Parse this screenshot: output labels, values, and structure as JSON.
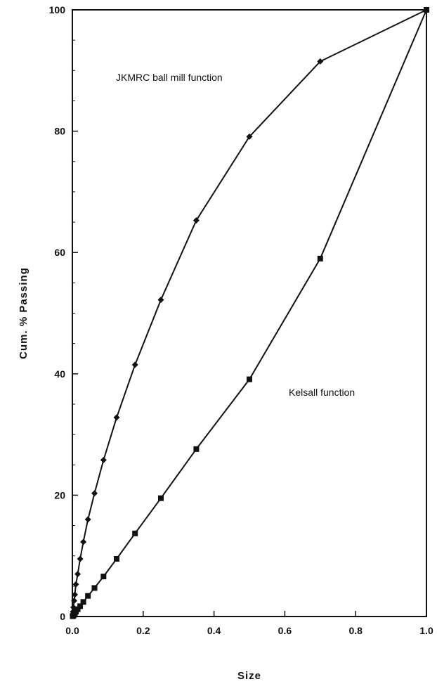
{
  "chart_data": {
    "type": "line",
    "xlabel": "Size",
    "ylabel": "Cum. % Passing",
    "xlim": [
      0,
      1.0
    ],
    "ylim": [
      0,
      100
    ],
    "x_ticks": [
      "0.0",
      "0.2",
      "0.4",
      "0.6",
      "0.8",
      "1.0"
    ],
    "y_ticks": [
      "0",
      "20",
      "40",
      "60",
      "80",
      "100"
    ],
    "grid": false,
    "series": [
      {
        "name": "JKMRC ball mill function",
        "marker": "diamond",
        "color": "#111111",
        "x": [
          0.001,
          0.002,
          0.003,
          0.005,
          0.007,
          0.01,
          0.015,
          0.022,
          0.031,
          0.044,
          0.0625,
          0.088,
          0.125,
          0.177,
          0.25,
          0.35,
          0.5,
          0.7,
          1.0
        ],
        "y": [
          0.3,
          0.8,
          1.5,
          2.6,
          3.6,
          5.3,
          7.0,
          9.5,
          12.3,
          16.0,
          20.3,
          25.8,
          32.8,
          41.5,
          52.2,
          65.3,
          79.1,
          91.5,
          100
        ]
      },
      {
        "name": "Kelsall function",
        "marker": "square",
        "color": "#111111",
        "x": [
          0.001,
          0.002,
          0.003,
          0.005,
          0.007,
          0.01,
          0.015,
          0.022,
          0.031,
          0.044,
          0.0625,
          0.088,
          0.125,
          0.177,
          0.25,
          0.35,
          0.5,
          0.7,
          1.0
        ],
        "y": [
          0.05,
          0.1,
          0.2,
          0.3,
          0.5,
          0.8,
          1.2,
          1.7,
          2.4,
          3.4,
          4.7,
          6.6,
          9.5,
          13.7,
          19.5,
          27.6,
          39.1,
          59.0,
          100
        ]
      }
    ],
    "annotations": [
      {
        "text": "JKMRC ball mill function",
        "series": 0
      },
      {
        "text": "Kelsall function",
        "series": 1
      }
    ]
  }
}
